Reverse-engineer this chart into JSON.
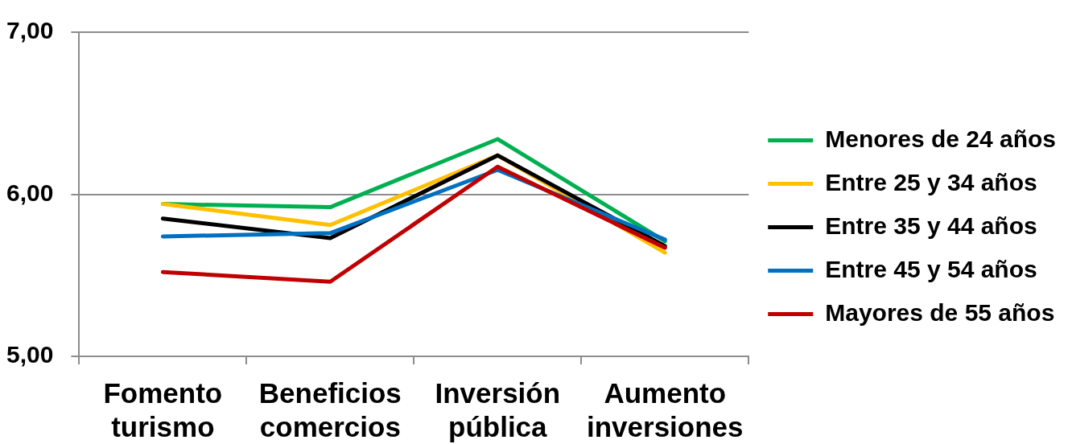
{
  "chart_data": {
    "type": "line",
    "categories": [
      "Fomento turismo",
      "Beneficios comercios",
      "Inversión pública",
      "Aumento inversiones"
    ],
    "series": [
      {
        "name": "Menores de 24 años",
        "color": "#00b050",
        "values": [
          5.94,
          5.92,
          6.34,
          5.71
        ]
      },
      {
        "name": "Entre 25 y 34 años",
        "color": "#ffc000",
        "values": [
          5.94,
          5.81,
          6.24,
          5.64
        ]
      },
      {
        "name": "Entre 35 y 44 años",
        "color": "#000000",
        "values": [
          5.85,
          5.73,
          6.24,
          5.68
        ]
      },
      {
        "name": "Entre 45 y 54 años",
        "color": "#0070c0",
        "values": [
          5.74,
          5.76,
          6.15,
          5.72
        ]
      },
      {
        "name": "Mayores de 55 años",
        "color": "#c00000",
        "values": [
          5.52,
          5.46,
          6.17,
          5.67
        ]
      }
    ],
    "ylim": [
      5,
      7
    ],
    "yticks": [
      {
        "value": 5,
        "label": "5,00"
      },
      {
        "value": 6,
        "label": "6,00"
      },
      {
        "value": 7,
        "label": "7,00"
      }
    ],
    "grid": "y",
    "legend": "right"
  }
}
